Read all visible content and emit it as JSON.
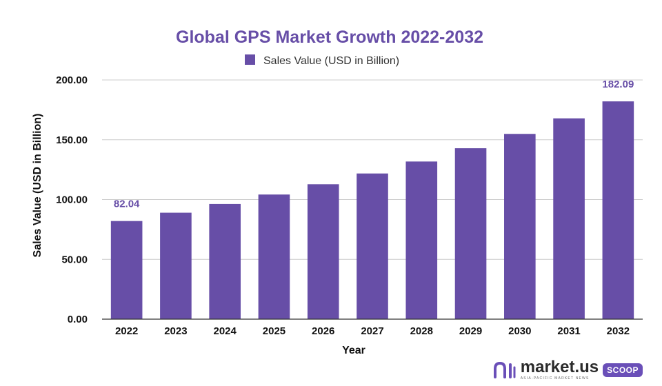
{
  "colors": {
    "bar": "#674ea7",
    "title": "#674ea7",
    "data_label": "#674ea7",
    "grid": "#cccccc",
    "axis": "#333333"
  },
  "chart_data": {
    "type": "bar",
    "title": "Global GPS Market Growth 2022-2032",
    "xlabel": "Year",
    "ylabel": "Sales Value (USD in Billion)",
    "categories": [
      "2022",
      "2023",
      "2024",
      "2025",
      "2026",
      "2027",
      "2028",
      "2029",
      "2030",
      "2031",
      "2032"
    ],
    "series": [
      {
        "name": "Sales Value (USD in Billion)",
        "values": [
          82.04,
          89.0,
          96.3,
          104.2,
          112.8,
          121.8,
          131.8,
          142.9,
          154.9,
          167.9,
          182.09
        ]
      }
    ],
    "ylim": [
      0,
      200
    ],
    "yticks": [
      "0.00",
      "50.00",
      "100.00",
      "150.00",
      "200.00"
    ],
    "data_labels": [
      {
        "category": "2022",
        "text": "82.04"
      },
      {
        "category": "2032",
        "text": "182.09"
      }
    ],
    "grid": true,
    "legend": "top-center"
  },
  "branding": {
    "logo_icon": "market-us-logo-icon",
    "name": "market.us",
    "tagline": "ASIA-PACIFIC MARKET NEWS",
    "badge": "SCOOP"
  }
}
